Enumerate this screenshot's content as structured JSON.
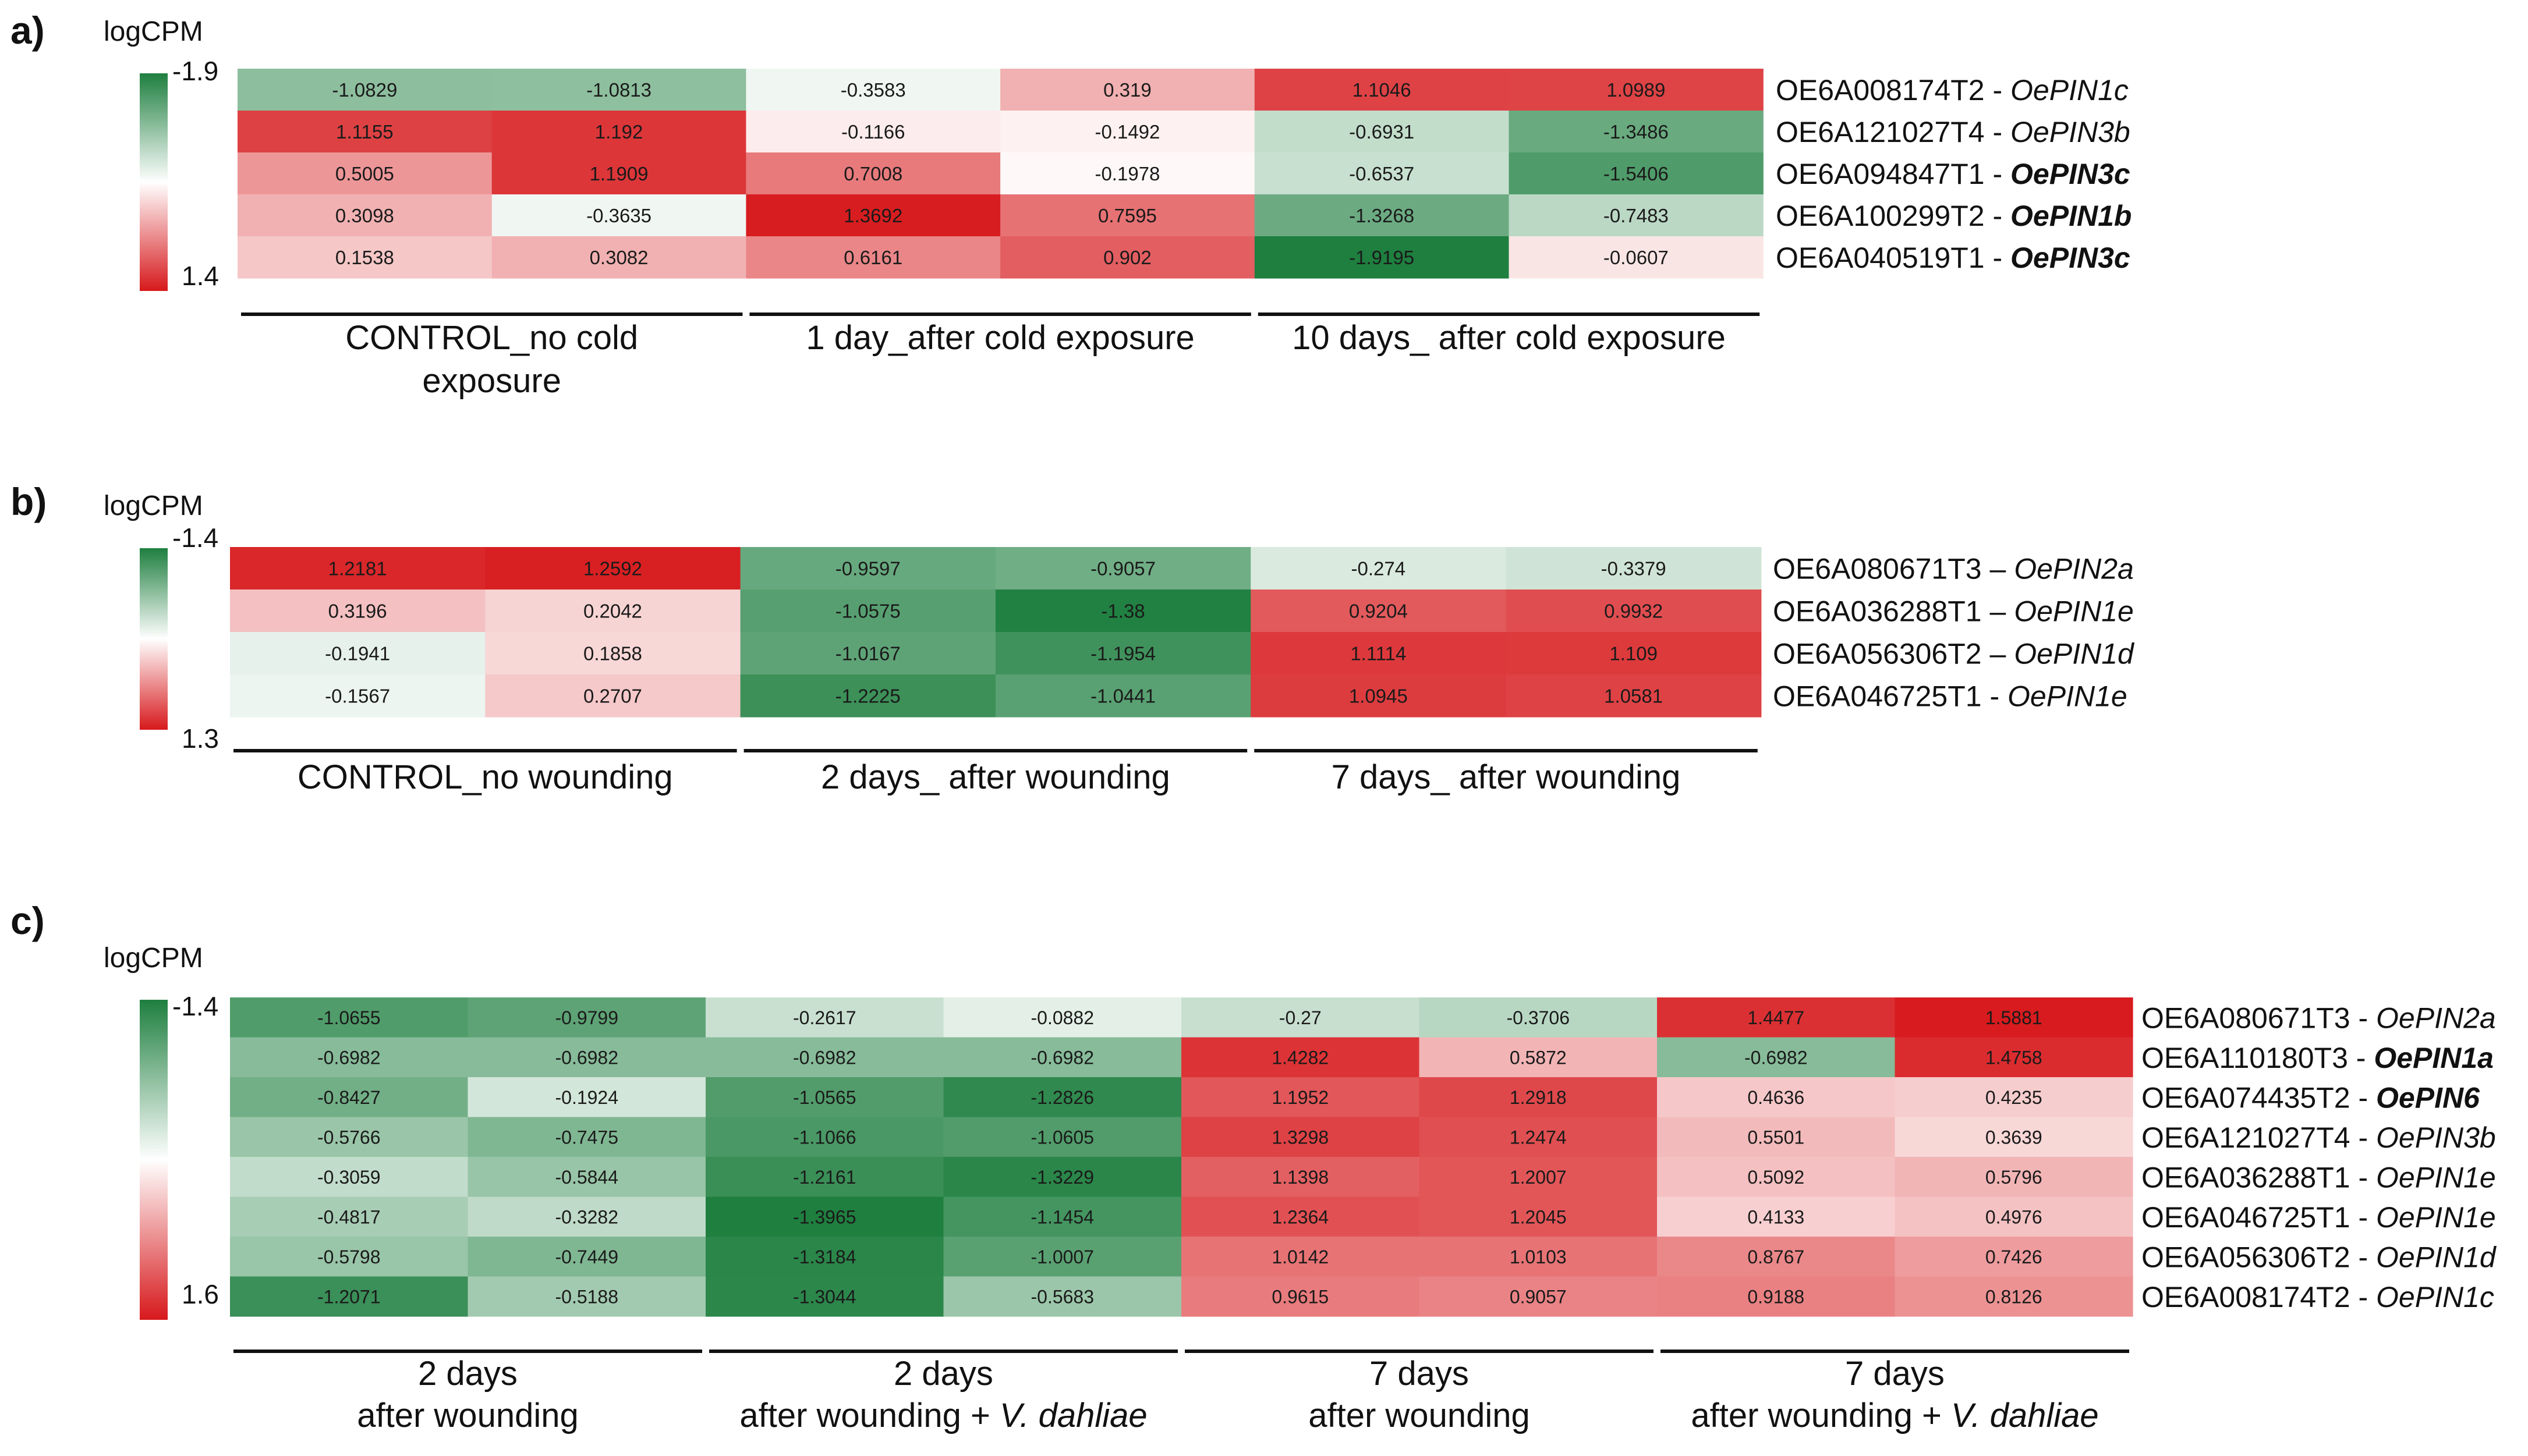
{
  "figure": {
    "colors": {
      "green": "#1e7f3f",
      "white": "#ffffff",
      "red": "#d7191c",
      "line": "#111111",
      "text": "#111111"
    }
  },
  "chart_data": [
    {
      "type": "heatmap",
      "panel_label": "a)",
      "scale_label": "logCPM",
      "scale_min": -1.9,
      "scale_max": 1.4,
      "scale_min_label": "-1.9",
      "scale_max_label": "1.4",
      "rows": [
        {
          "id": "OE6A008174T2",
          "sep": " - ",
          "gene": "OePIN1c",
          "bold": false
        },
        {
          "id": "OE6A121027T4",
          "sep": " - ",
          "gene": "OePIN3b",
          "bold": false
        },
        {
          "id": "OE6A094847T1",
          "sep": " - ",
          "gene": "OePIN3c",
          "bold": true
        },
        {
          "id": "OE6A100299T2",
          "sep": " - ",
          "gene": "OePIN1b",
          "bold": true
        },
        {
          "id": "OE6A040519T1",
          "sep": " - ",
          "gene": "OePIN3c",
          "bold": true
        }
      ],
      "values": [
        [
          -1.0829,
          -1.0813,
          -0.3583,
          0.319,
          1.1046,
          1.0989
        ],
        [
          1.1155,
          1.192,
          -0.1166,
          -0.1492,
          -0.6931,
          -1.3486
        ],
        [
          0.5005,
          1.1909,
          0.7008,
          -0.1978,
          -0.6537,
          -1.5406
        ],
        [
          0.3098,
          -0.3635,
          1.3692,
          0.7595,
          -1.3268,
          -0.7483
        ],
        [
          0.1538,
          0.3082,
          0.6161,
          0.902,
          -1.9195,
          -0.0607
        ]
      ],
      "groups": [
        {
          "lines": [
            "CONTROL_no cold",
            "exposure"
          ]
        },
        {
          "lines": [
            "1 day_after cold exposure"
          ]
        },
        {
          "lines": [
            "10 days_ after cold exposure"
          ]
        }
      ]
    },
    {
      "type": "heatmap",
      "panel_label": "b)",
      "scale_label": "logCPM",
      "scale_min": -1.4,
      "scale_max": 1.3,
      "scale_min_label": "-1.4",
      "scale_max_label": "1.3",
      "rows": [
        {
          "id": "OE6A080671T3",
          "sep": " – ",
          "gene": "OePIN2a",
          "bold": false
        },
        {
          "id": "OE6A036288T1",
          "sep": " – ",
          "gene": "OePIN1e",
          "bold": false
        },
        {
          "id": "OE6A056306T2",
          "sep": " – ",
          "gene": "OePIN1d",
          "bold": false
        },
        {
          "id": "OE6A046725T1",
          "sep": " - ",
          "gene": "OePIN1e",
          "bold": false
        }
      ],
      "values": [
        [
          1.2181,
          1.2592,
          -0.9597,
          -0.9057,
          -0.274,
          -0.3379
        ],
        [
          0.3196,
          0.2042,
          -1.0575,
          -1.38,
          0.9204,
          0.9932
        ],
        [
          -0.1941,
          0.1858,
          -1.0167,
          -1.1954,
          1.1114,
          1.109
        ],
        [
          -0.1567,
          0.2707,
          -1.2225,
          -1.0441,
          1.0945,
          1.0581
        ]
      ],
      "groups": [
        {
          "lines": [
            "CONTROL_no wounding"
          ]
        },
        {
          "lines": [
            "2 days_ after wounding"
          ]
        },
        {
          "lines": [
            "7 days_ after wounding"
          ]
        }
      ]
    },
    {
      "type": "heatmap",
      "panel_label": "c)",
      "scale_label": "logCPM",
      "scale_min": -1.4,
      "scale_max": 1.6,
      "scale_min_label": "-1.4",
      "scale_max_label": "1.6",
      "rows": [
        {
          "id": "OE6A080671T3",
          "sep": " - ",
          "gene": "OePIN2a",
          "bold": false
        },
        {
          "id": "OE6A110180T3",
          "sep": " - ",
          "gene": "OePIN1a",
          "bold": true
        },
        {
          "id": "OE6A074435T2",
          "sep": " - ",
          "gene": "OePIN6",
          "bold": true
        },
        {
          "id": "OE6A121027T4",
          "sep": " - ",
          "gene": "OePIN3b",
          "bold": false
        },
        {
          "id": "OE6A036288T1",
          "sep": " - ",
          "gene": "OePIN1e",
          "bold": false
        },
        {
          "id": "OE6A046725T1",
          "sep": " - ",
          "gene": "OePIN1e",
          "bold": false
        },
        {
          "id": "OE6A056306T2",
          "sep": " - ",
          "gene": "OePIN1d",
          "bold": false
        },
        {
          "id": "OE6A008174T2",
          "sep": " - ",
          "gene": "OePIN1c",
          "bold": false
        }
      ],
      "values": [
        [
          -1.0655,
          -0.9799,
          -0.2617,
          -0.0882,
          -0.27,
          -0.3706,
          1.4477,
          1.5881
        ],
        [
          -0.6982,
          -0.6982,
          -0.6982,
          -0.6982,
          1.4282,
          0.5872,
          -0.6982,
          1.4758
        ],
        [
          -0.8427,
          -0.1924,
          -1.0565,
          -1.2826,
          1.1952,
          1.2918,
          0.4636,
          0.4235
        ],
        [
          -0.5766,
          -0.7475,
          -1.1066,
          -1.0605,
          1.3298,
          1.2474,
          0.5501,
          0.3639
        ],
        [
          -0.3059,
          -0.5844,
          -1.2161,
          -1.3229,
          1.1398,
          1.2007,
          0.5092,
          0.5796
        ],
        [
          -0.4817,
          -0.3282,
          -1.3965,
          -1.1454,
          1.2364,
          1.2045,
          0.4133,
          0.4976
        ],
        [
          -0.5798,
          -0.7449,
          -1.3184,
          -1.0007,
          1.0142,
          1.0103,
          0.8767,
          0.7426
        ],
        [
          -1.2071,
          -0.5188,
          -1.3044,
          -0.5683,
          0.9615,
          0.9057,
          0.9188,
          0.8126
        ]
      ],
      "groups": [
        {
          "lines": [
            "2 days",
            "after wounding"
          ]
        },
        {
          "lines": [
            "2 days",
            "after wounding + ",
            "V. dahliae"
          ]
        },
        {
          "lines": [
            "7 days",
            "after wounding"
          ]
        },
        {
          "lines": [
            "7 days",
            "after wounding + ",
            "V. dahliae"
          ]
        }
      ]
    }
  ]
}
